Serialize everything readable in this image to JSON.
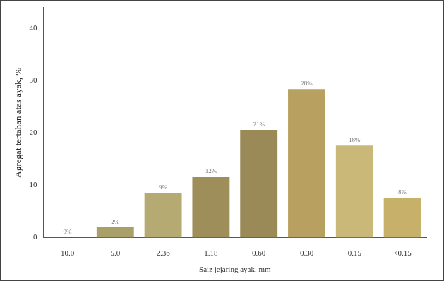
{
  "chart_data": {
    "type": "bar",
    "y_label": "Agregat tertahan atas ayak, %",
    "x_label": "Saiz jejaring ayak, mm",
    "categories": [
      "10.0",
      "5.0",
      "2.36",
      "1.18",
      "0.60",
      "0.30",
      "0.15",
      "<0.15"
    ],
    "values": [
      0,
      2,
      8.6,
      11.7,
      20.6,
      28.4,
      17.6,
      7.6
    ],
    "value_labels": [
      "0%",
      "2%",
      "9%",
      "12%",
      "21%",
      "28%",
      "18%",
      "8%"
    ],
    "colors": [
      "#b0a870",
      "#a8a068",
      "#b5ab72",
      "#9e8f5a",
      "#9a8a58",
      "#b8a060",
      "#c9b878",
      "#c7b06a"
    ],
    "ylim": [
      0,
      44
    ],
    "yticks": [
      0,
      10,
      20,
      30,
      40
    ],
    "grid": false,
    "data_labels": true
  }
}
